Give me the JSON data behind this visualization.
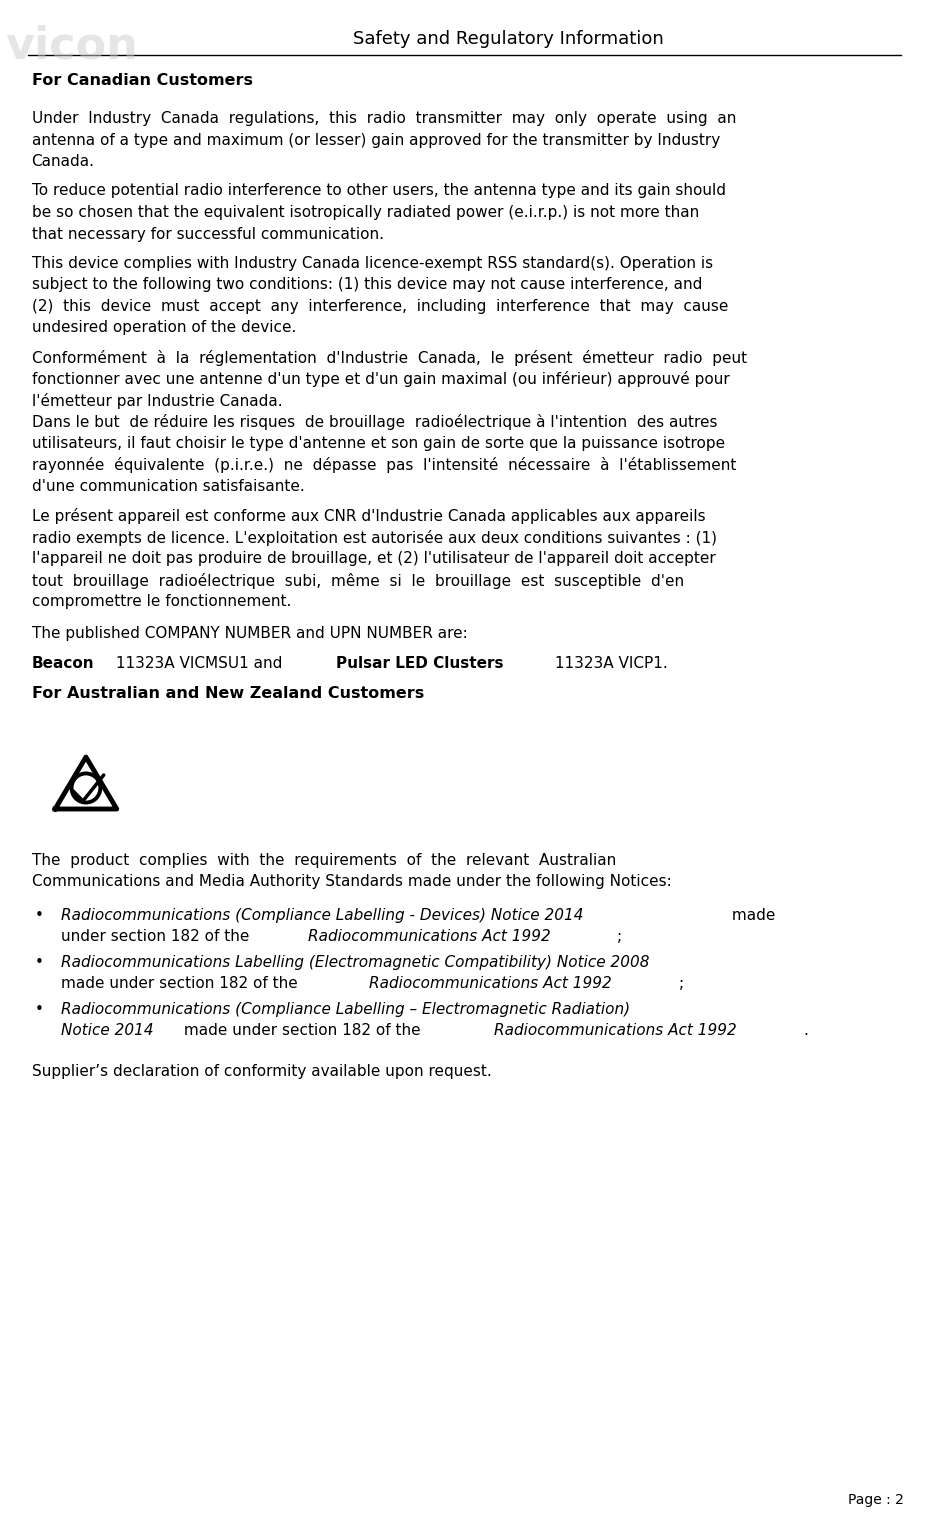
{
  "title": "Safety and Regulatory Information",
  "page_number": "Page : 2",
  "background_color": "#ffffff",
  "text_color": "#000000",
  "header_section": {
    "title": "Safety and Regulatory Information",
    "title_fontsize": 14,
    "title_style": "normal"
  },
  "sections": [
    {
      "heading": "For Canadian Customers",
      "heading_bold": true,
      "heading_fontsize": 11.5,
      "paragraphs": [
        {
          "text": "Under  Industry  Canada  regulations,  this  radio  transmitter  may  only  operate  using  an antenna of a type and maximum (or lesser) gain approved for the transmitter by Industry Canada.",
          "fontsize": 11,
          "style": "justify"
        },
        {
          "text": "To reduce potential radio interference to other users, the antenna type and its gain should be so chosen that the equivalent isotropically radiated power (e.i.r.p.) is not more than that necessary for successful communication.",
          "fontsize": 11,
          "style": "justify"
        },
        {
          "text": "This device complies with Industry Canada licence-exempt RSS standard(s). Operation is subject to the following two conditions: (1) this device may not cause interference, and (2)  this  device  must  accept  any  interference,  including  interference  that  may  cause undesired operation of the device.",
          "fontsize": 11,
          "style": "justify"
        },
        {
          "text": "Conformément  à  la  réglementation  d'Industrie  Canada,  le  présent  émetteur  radio  peut fonctionner avec une antenne d'un type et d'un gain maximal (ou inférieur) approuvé pour l'émetteur par Industrie Canada.\nDans le but  de réduire les risques  de brouillage  radioélectrique à l'intention  des autres utilisateurs, il faut choisir le type d'antenne et son gain de sorte que la puissance isotrope rayonnée  équivalente  (p.i.r.e.)  ne  dépasse  pas  l'intensité  nécessaire  à  l'établissement d'une communication satisfaisante.",
          "fontsize": 11,
          "style": "justify"
        },
        {
          "text": "Le présent appareil est conforme aux CNR d'Industrie Canada applicables aux appareils radio exempts de licence. L'exploitation est autorisée aux deux conditions suivantes : (1) l'appareil ne doit pas produire de brouillage, et (2) l'utilisateur de l'appareil doit accepter tout  brouillage  radioélectrique  subi,  même  si  le  brouillage  est  susceptible  d'en compromettre le fonctionnement.",
          "fontsize": 11,
          "style": "justify"
        },
        {
          "text": "The published COMPANY NUMBER and UPN NUMBER are:",
          "fontsize": 11,
          "style": "normal"
        },
        {
          "type": "mixed_bold",
          "parts": [
            {
              "text": "Beacon",
              "bold": true
            },
            {
              "text": " 11323A VICMSU1 and ",
              "bold": false
            },
            {
              "text": "Pulsar LED Clusters",
              "bold": true
            },
            {
              "text": " 11323A VICP1.",
              "bold": false
            }
          ],
          "fontsize": 11
        }
      ]
    },
    {
      "heading": "For Australian and New Zealand Customers",
      "heading_bold": true,
      "heading_fontsize": 11.5,
      "paragraphs": [
        {
          "text": "The  product  complies  with  the  requirements  of  the  relevant  Australian Communications and Media Authority Standards made under the following Notices:",
          "fontsize": 11,
          "style": "justify"
        },
        {
          "type": "bullets",
          "items": [
            {
              "italic_part": "Radiocommunications (Compliance Labelling - Devices) Notice 2014",
              "normal_part": " made under section 182 of the ",
              "italic_end": "Radiocommunications Act 1992",
              "end": ";"
            },
            {
              "italic_part": "Radiocommunications Labelling (Electromagnetic Compatibility) Notice 2008",
              "normal_part": " made under section 182 of the ",
              "italic_end": "Radiocommunications Act 1992",
              "end": ";"
            },
            {
              "italic_part": "Radiocommunications (Compliance Labelling – Electromagnetic Radiation) Notice 2014",
              "normal_part": " made under section 182 of the ",
              "italic_end": "Radiocommunications Act 1992",
              "end": "."
            }
          ],
          "fontsize": 11
        },
        {
          "text": "Supplier’s declaration of conformity available upon request.",
          "fontsize": 11,
          "style": "normal"
        }
      ]
    }
  ]
}
